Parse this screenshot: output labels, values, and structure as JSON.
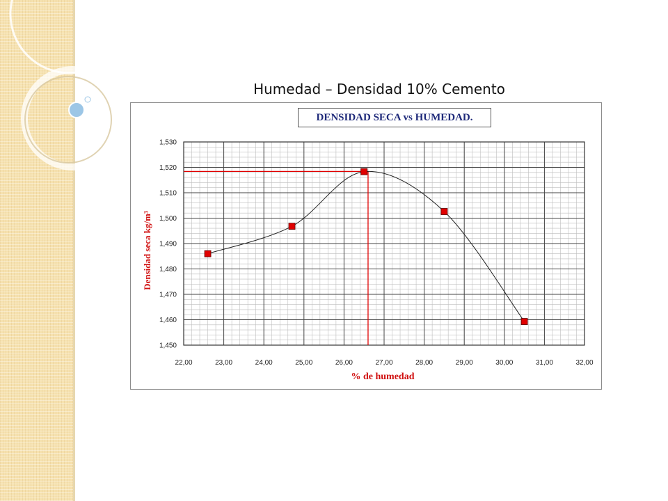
{
  "slide": {
    "title": "Humedad – Densidad 10% Cemento"
  },
  "chart_data": {
    "type": "line",
    "title": "DENSIDAD SECA vs HUMEDAD.",
    "xlabel": "% de humedad",
    "ylabel": "Densidad seca kg/m³",
    "xlim": [
      22,
      32
    ],
    "ylim": [
      1450,
      1530
    ],
    "x_ticks": [
      "22,00",
      "23,00",
      "24,00",
      "25,00",
      "26,00",
      "27,00",
      "28,00",
      "29,00",
      "30,00",
      "31,00",
      "32,00"
    ],
    "y_ticks": [
      "1,450",
      "1,460",
      "1,470",
      "1,480",
      "1,490",
      "1,500",
      "1,510",
      "1,520",
      "1,530"
    ],
    "series": [
      {
        "x": [
          22.6,
          24.7,
          26.5,
          28.5,
          30.5
        ],
        "y": [
          1486.0,
          1496.8,
          1518.3,
          1502.6,
          1459.3
        ]
      }
    ],
    "reference": {
      "x": 26.6,
      "y": 1518.4
    },
    "grid": true,
    "colors": {
      "line": "#222222",
      "marker": "#e00000",
      "reference": "#e00000",
      "axis_label": "#d01010",
      "title": "#1f2a7a"
    }
  }
}
